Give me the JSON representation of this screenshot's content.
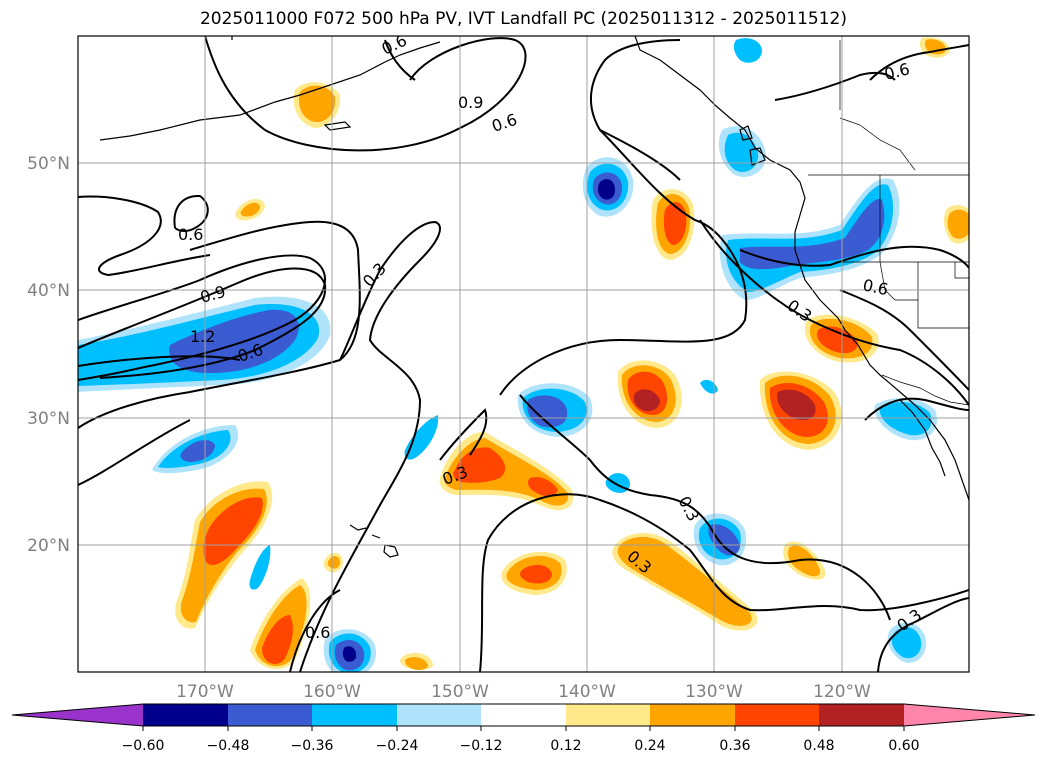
{
  "title": "2025011000 F072 500 hPa PV, IVT Landfall PC (2025011312 - 2025011512)",
  "map": {
    "lon_labels": [
      "170°W",
      "160°W",
      "150°W",
      "140°W",
      "130°W",
      "120°W"
    ],
    "lat_labels": [
      "50°N",
      "40°N",
      "30°N",
      "20°N"
    ],
    "gridlines": true
  },
  "contour_labels": [
    {
      "text": "0.6"
    },
    {
      "text": "0.9"
    },
    {
      "text": "0.6"
    },
    {
      "text": "0.6"
    },
    {
      "text": "0.9"
    },
    {
      "text": "1.2"
    },
    {
      "text": "0.6"
    },
    {
      "text": "0.3"
    },
    {
      "text": "0.3"
    },
    {
      "text": "0.3"
    },
    {
      "text": "0.3"
    },
    {
      "text": "0.6"
    },
    {
      "text": "0.3"
    },
    {
      "text": "0.6"
    },
    {
      "text": "0.3"
    }
  ],
  "colorbar": {
    "ticks": [
      "−0.60",
      "−0.48",
      "−0.36",
      "−0.24",
      "−0.12",
      "0.12",
      "0.24",
      "0.36",
      "0.48",
      "0.60"
    ],
    "colors": [
      "#9933cc",
      "#00008b",
      "#3a5bd1",
      "#00bfff",
      "#aee3fb",
      "#ffffff",
      "#ffe98a",
      "#ffa500",
      "#ff4500",
      "#b22222",
      "#ff85ab"
    ],
    "extend": "both"
  },
  "colors": {
    "blue_dark": "#00008b",
    "blue_mid": "#3a5bd1",
    "blue": "#00bfff",
    "blue_light": "#aee3fb",
    "yellow": "#ffe98a",
    "orange": "#ffa500",
    "orangered": "#ff4500",
    "firebrick": "#b22222"
  }
}
